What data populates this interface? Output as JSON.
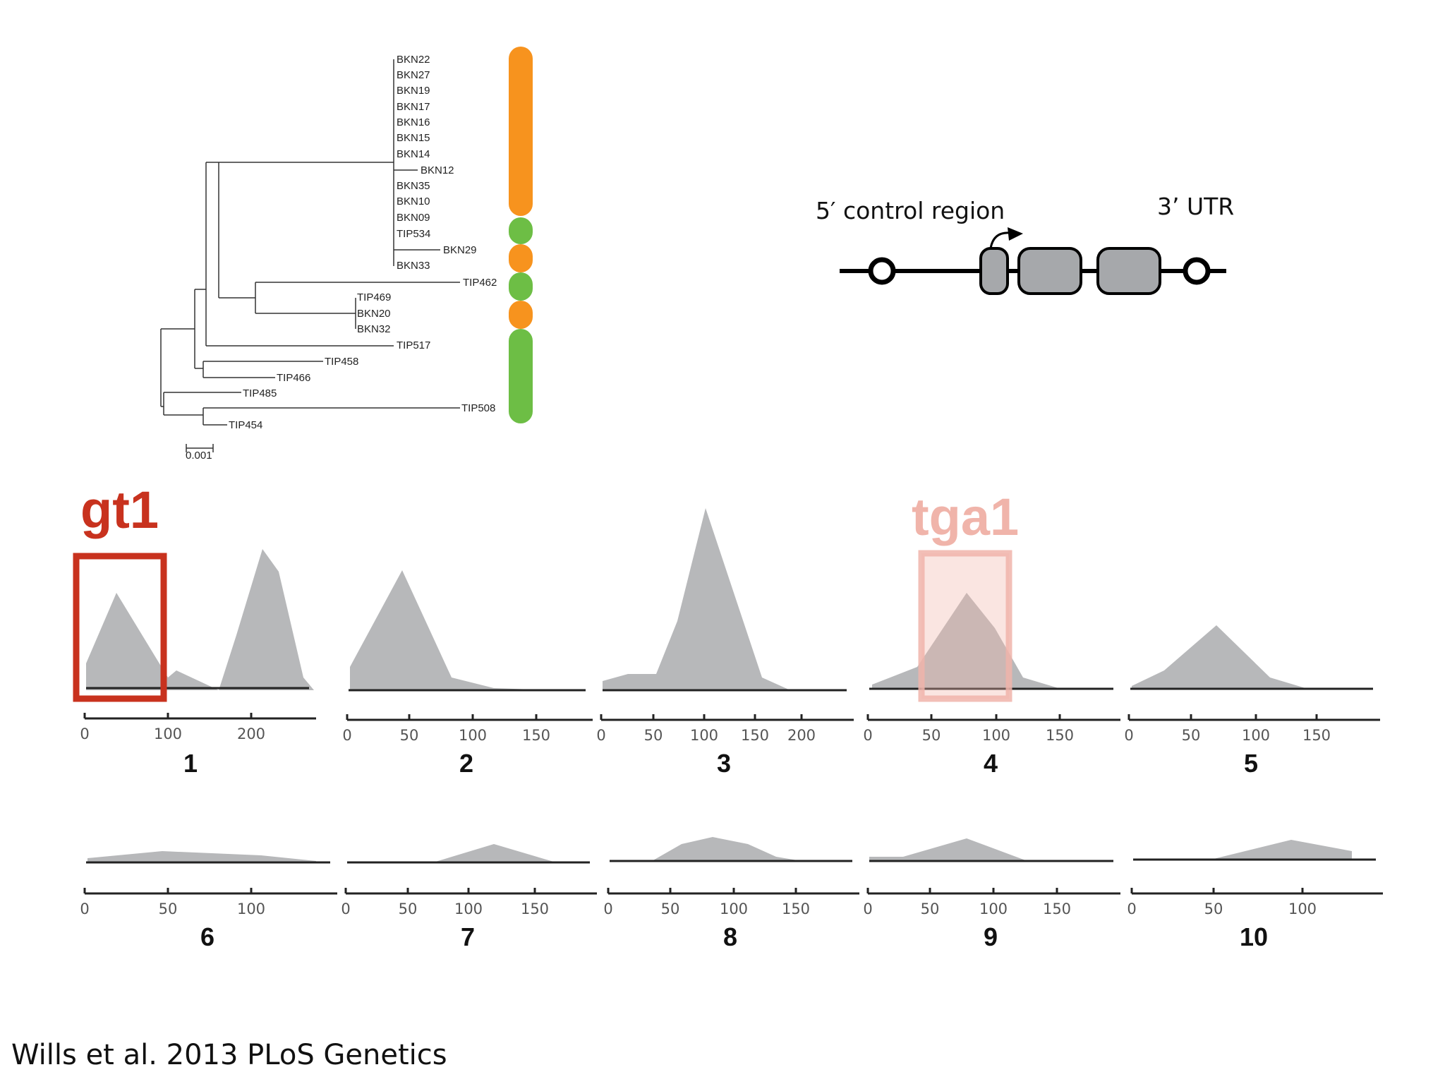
{
  "tree": {
    "scale_label": "0.001",
    "taxa": [
      "BKN22",
      "BKN27",
      "BKN19",
      "BKN17",
      "BKN16",
      "BKN15",
      "BKN14",
      "BKN12",
      "BKN35",
      "BKN10",
      "BKN09",
      "TIP534",
      "BKN29",
      "BKN33",
      "TIP462",
      "TIP469",
      "BKN20",
      "BKN32",
      "TIP517",
      "TIP458",
      "TIP466",
      "TIP485",
      "TIP508",
      "TIP454"
    ],
    "color_bar": [
      {
        "color": "#F7931E",
        "group": "orange"
      },
      {
        "color": "#6DBE45",
        "group": "green"
      },
      {
        "color": "#F7931E",
        "group": "orange"
      },
      {
        "color": "#6DBE45",
        "group": "green"
      },
      {
        "color": "#F7931E",
        "group": "orange"
      },
      {
        "color": "#6DBE45",
        "group": "green"
      }
    ]
  },
  "gene_diagram": {
    "left_label": "5′ control region",
    "right_label": "3’ UTR"
  },
  "highlights": {
    "gt1": {
      "label": "gt1",
      "color": "#C8321E",
      "panel": "1"
    },
    "tga1": {
      "label": "tga1",
      "color": "#F0B4AA",
      "panel": "4"
    }
  },
  "panels": [
    {
      "number": "1",
      "ticks": [
        "0",
        "100",
        "200"
      ]
    },
    {
      "number": "2",
      "ticks": [
        "0",
        "50",
        "100",
        "150"
      ]
    },
    {
      "number": "3",
      "ticks": [
        "0",
        "50",
        "100",
        "150",
        "200"
      ]
    },
    {
      "number": "4",
      "ticks": [
        "0",
        "50",
        "100",
        "150"
      ]
    },
    {
      "number": "5",
      "ticks": [
        "0",
        "50",
        "100",
        "150"
      ]
    },
    {
      "number": "6",
      "ticks": [
        "0",
        "50",
        "100"
      ]
    },
    {
      "number": "7",
      "ticks": [
        "0",
        "50",
        "100",
        "150"
      ]
    },
    {
      "number": "8",
      "ticks": [
        "0",
        "50",
        "100",
        "150"
      ]
    },
    {
      "number": "9",
      "ticks": [
        "0",
        "50",
        "100",
        "150"
      ]
    },
    {
      "number": "10",
      "ticks": [
        "0",
        "50",
        "100"
      ]
    }
  ],
  "citation": "Wills et al. 2013 PLoS Genetics"
}
